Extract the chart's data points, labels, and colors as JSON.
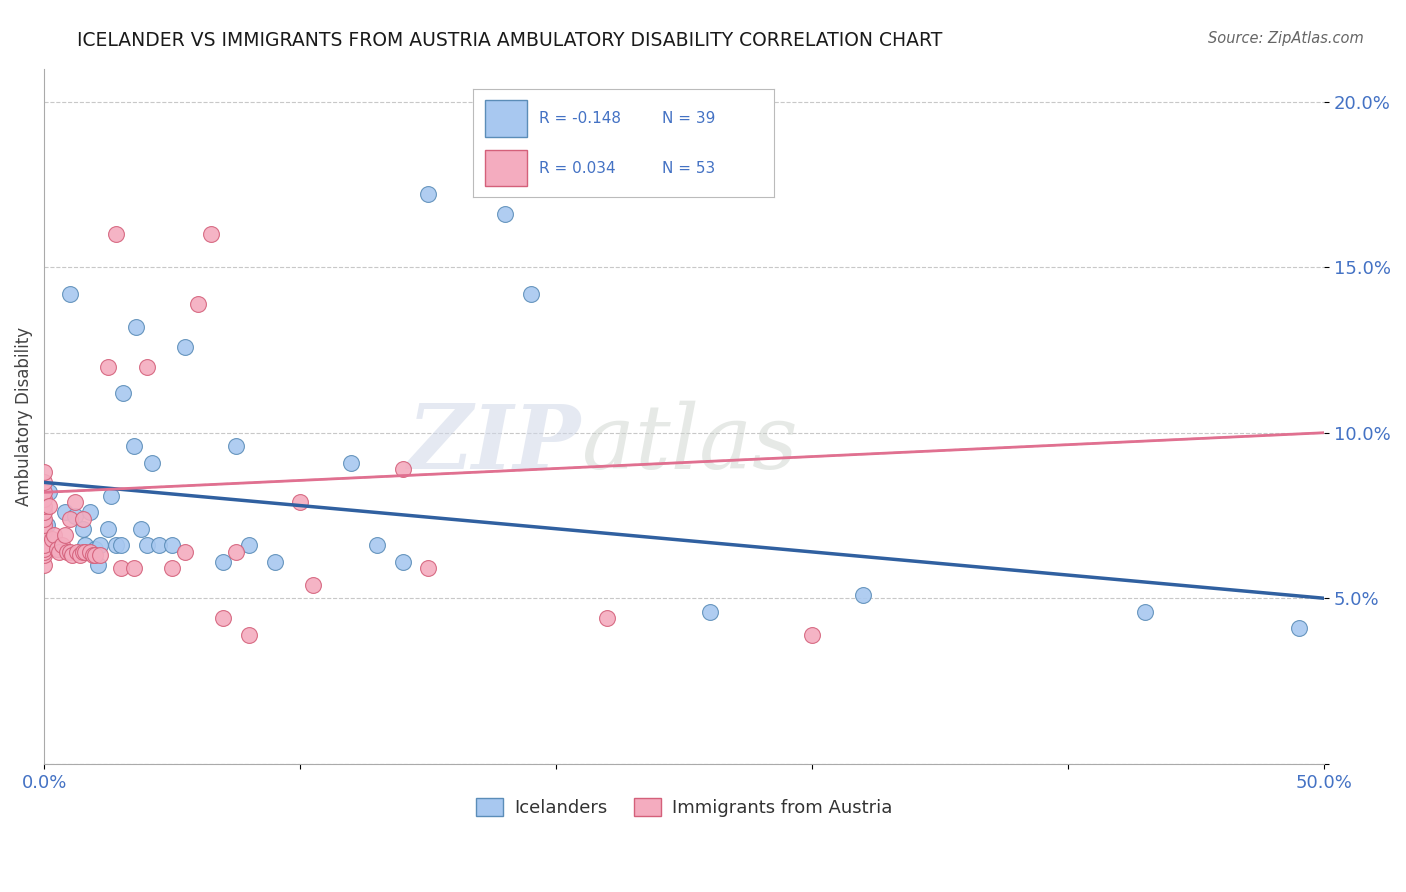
{
  "title": "ICELANDER VS IMMIGRANTS FROM AUSTRIA AMBULATORY DISABILITY CORRELATION CHART",
  "source": "Source: ZipAtlas.com",
  "ylabel_label": "Ambulatory Disability",
  "x_min": 0.0,
  "x_max": 0.5,
  "y_min": 0.0,
  "y_max": 0.21,
  "x_ticks": [
    0.0,
    0.1,
    0.2,
    0.3,
    0.4,
    0.5
  ],
  "x_tick_labels": [
    "0.0%",
    "",
    "",
    "",
    "",
    "50.0%"
  ],
  "y_ticks": [
    0.0,
    0.05,
    0.1,
    0.15,
    0.2
  ],
  "y_tick_labels": [
    "",
    "5.0%",
    "10.0%",
    "15.0%",
    "20.0%"
  ],
  "blue_R": -0.148,
  "blue_N": 39,
  "pink_R": 0.034,
  "pink_N": 53,
  "blue_color": "#A8C8F0",
  "pink_color": "#F4ACBF",
  "blue_edge_color": "#5B8DB8",
  "pink_edge_color": "#D4607A",
  "blue_line_color": "#3060A0",
  "pink_line_color": "#E07090",
  "blue_line_y0": 0.085,
  "blue_line_y1": 0.05,
  "pink_line_y0": 0.082,
  "pink_line_y1": 0.1,
  "blue_scatter_x": [
    0.001,
    0.002,
    0.005,
    0.008,
    0.01,
    0.012,
    0.015,
    0.016,
    0.018,
    0.02,
    0.021,
    0.022,
    0.025,
    0.026,
    0.028,
    0.03,
    0.031,
    0.035,
    0.036,
    0.038,
    0.04,
    0.042,
    0.045,
    0.05,
    0.055,
    0.07,
    0.075,
    0.08,
    0.09,
    0.12,
    0.13,
    0.14,
    0.15,
    0.18,
    0.19,
    0.26,
    0.32,
    0.43,
    0.49
  ],
  "blue_scatter_y": [
    0.072,
    0.082,
    0.065,
    0.076,
    0.142,
    0.075,
    0.071,
    0.066,
    0.076,
    0.065,
    0.06,
    0.066,
    0.071,
    0.081,
    0.066,
    0.066,
    0.112,
    0.096,
    0.132,
    0.071,
    0.066,
    0.091,
    0.066,
    0.066,
    0.126,
    0.061,
    0.096,
    0.066,
    0.061,
    0.091,
    0.066,
    0.061,
    0.172,
    0.166,
    0.142,
    0.046,
    0.051,
    0.046,
    0.041
  ],
  "pink_scatter_x": [
    0.0,
    0.0,
    0.0,
    0.0,
    0.0,
    0.0,
    0.0,
    0.0,
    0.0,
    0.0,
    0.0,
    0.0,
    0.0,
    0.0,
    0.002,
    0.003,
    0.004,
    0.005,
    0.006,
    0.007,
    0.008,
    0.009,
    0.01,
    0.01,
    0.011,
    0.012,
    0.013,
    0.014,
    0.015,
    0.015,
    0.016,
    0.018,
    0.019,
    0.02,
    0.022,
    0.025,
    0.028,
    0.03,
    0.035,
    0.04,
    0.05,
    0.055,
    0.06,
    0.065,
    0.07,
    0.075,
    0.08,
    0.1,
    0.105,
    0.14,
    0.15,
    0.22,
    0.3
  ],
  "pink_scatter_y": [
    0.06,
    0.063,
    0.064,
    0.065,
    0.066,
    0.07,
    0.072,
    0.074,
    0.076,
    0.078,
    0.08,
    0.082,
    0.085,
    0.088,
    0.078,
    0.068,
    0.069,
    0.065,
    0.064,
    0.066,
    0.069,
    0.064,
    0.064,
    0.074,
    0.063,
    0.079,
    0.064,
    0.063,
    0.064,
    0.074,
    0.064,
    0.064,
    0.063,
    0.063,
    0.063,
    0.12,
    0.16,
    0.059,
    0.059,
    0.12,
    0.059,
    0.064,
    0.139,
    0.16,
    0.044,
    0.064,
    0.039,
    0.079,
    0.054,
    0.089,
    0.059,
    0.044,
    0.039
  ],
  "watermark_zip": "ZIP",
  "watermark_atlas": "atlas",
  "legend_blue_label": "Icelanders",
  "legend_pink_label": "Immigrants from Austria"
}
